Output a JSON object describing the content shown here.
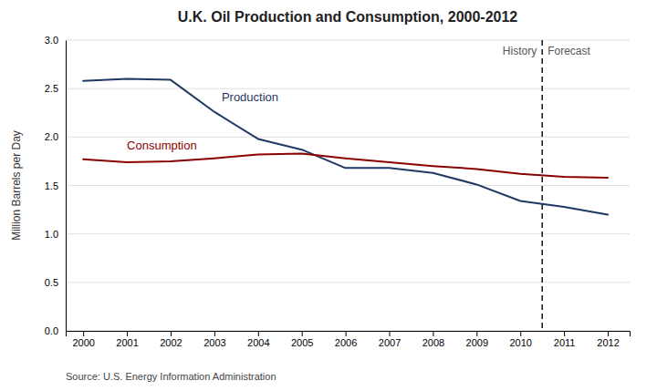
{
  "chart_data": {
    "type": "line",
    "title": "U.K. Oil Production and Consumption, 2000-2012",
    "ylabel": "Million Barrels per Day",
    "source": "Source: U.S. Energy Information Administration",
    "x": [
      2000,
      2001,
      2002,
      2003,
      2004,
      2005,
      2006,
      2007,
      2008,
      2009,
      2010,
      2011,
      2012
    ],
    "series": [
      {
        "name": "Production",
        "color": "#1F3864",
        "values": [
          2.58,
          2.6,
          2.59,
          2.26,
          1.98,
          1.87,
          1.68,
          1.68,
          1.63,
          1.51,
          1.34,
          1.28,
          1.2
        ]
      },
      {
        "name": "Consumption",
        "color": "#8B0000",
        "values": [
          1.77,
          1.74,
          1.75,
          1.78,
          1.82,
          1.83,
          1.78,
          1.74,
          1.7,
          1.67,
          1.62,
          1.59,
          1.58
        ]
      }
    ],
    "xlim": [
      1999.6,
      2012.5
    ],
    "xticks": [
      2000,
      2001,
      2002,
      2003,
      2004,
      2005,
      2006,
      2007,
      2008,
      2009,
      2010,
      2011,
      2012
    ],
    "ylim": [
      0.0,
      3.0
    ],
    "yticks": [
      {
        "value": 0.0,
        "label": "0.0"
      },
      0.5,
      {
        "value": 1.0,
        "label": "1.0"
      },
      1.5,
      {
        "value": 2.0,
        "label": "2.0"
      },
      2.5,
      {
        "value": 3.0,
        "label": "3.0"
      }
    ],
    "grid": true,
    "annotations": [
      {
        "type": "vline",
        "x": 2010.5,
        "line_style": "dashed"
      },
      {
        "type": "text",
        "text": "History"
      },
      {
        "type": "text",
        "text": "Forecast"
      }
    ]
  }
}
